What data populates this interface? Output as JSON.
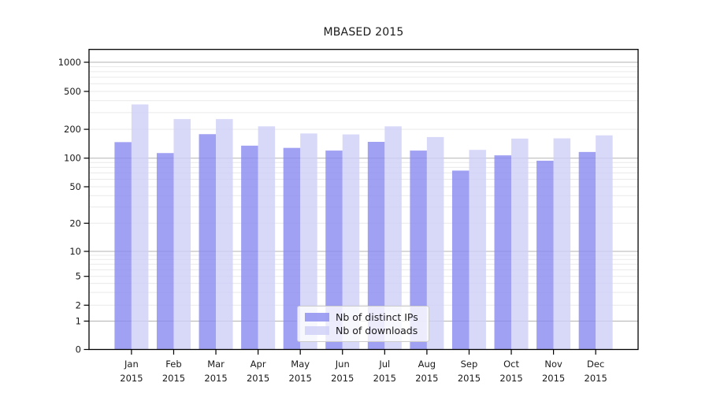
{
  "chart_data": {
    "type": "bar",
    "title": "MBASED 2015",
    "categories": [
      "Jan",
      "Feb",
      "Mar",
      "Apr",
      "May",
      "Jun",
      "Jul",
      "Aug",
      "Sep",
      "Oct",
      "Nov",
      "Dec"
    ],
    "category_year": "2015",
    "series": [
      {
        "name": "Nb of distinct IPs",
        "color": "#8c8cf0",
        "values": [
          147,
          113,
          178,
          135,
          128,
          120,
          148,
          120,
          74,
          107,
          94,
          116
        ]
      },
      {
        "name": "Nb of downloads",
        "color": "#d0d0f8",
        "values": [
          365,
          256,
          256,
          215,
          181,
          177,
          215,
          166,
          122,
          160,
          161,
          173
        ]
      }
    ],
    "xlabel": "",
    "ylabel": "",
    "y_axis": {
      "scale": "symlog",
      "ticks": [
        0,
        1,
        2,
        5,
        10,
        20,
        50,
        100,
        200,
        500,
        1000
      ],
      "ylim": [
        0,
        1360
      ]
    },
    "grid": "on",
    "legend_position": "inside-bottom-center",
    "colors": {
      "major_gridline": "#b3b3b3",
      "minor_gridline": "#e9e9e9",
      "axis": "#000000",
      "background": "#ffffff"
    }
  }
}
